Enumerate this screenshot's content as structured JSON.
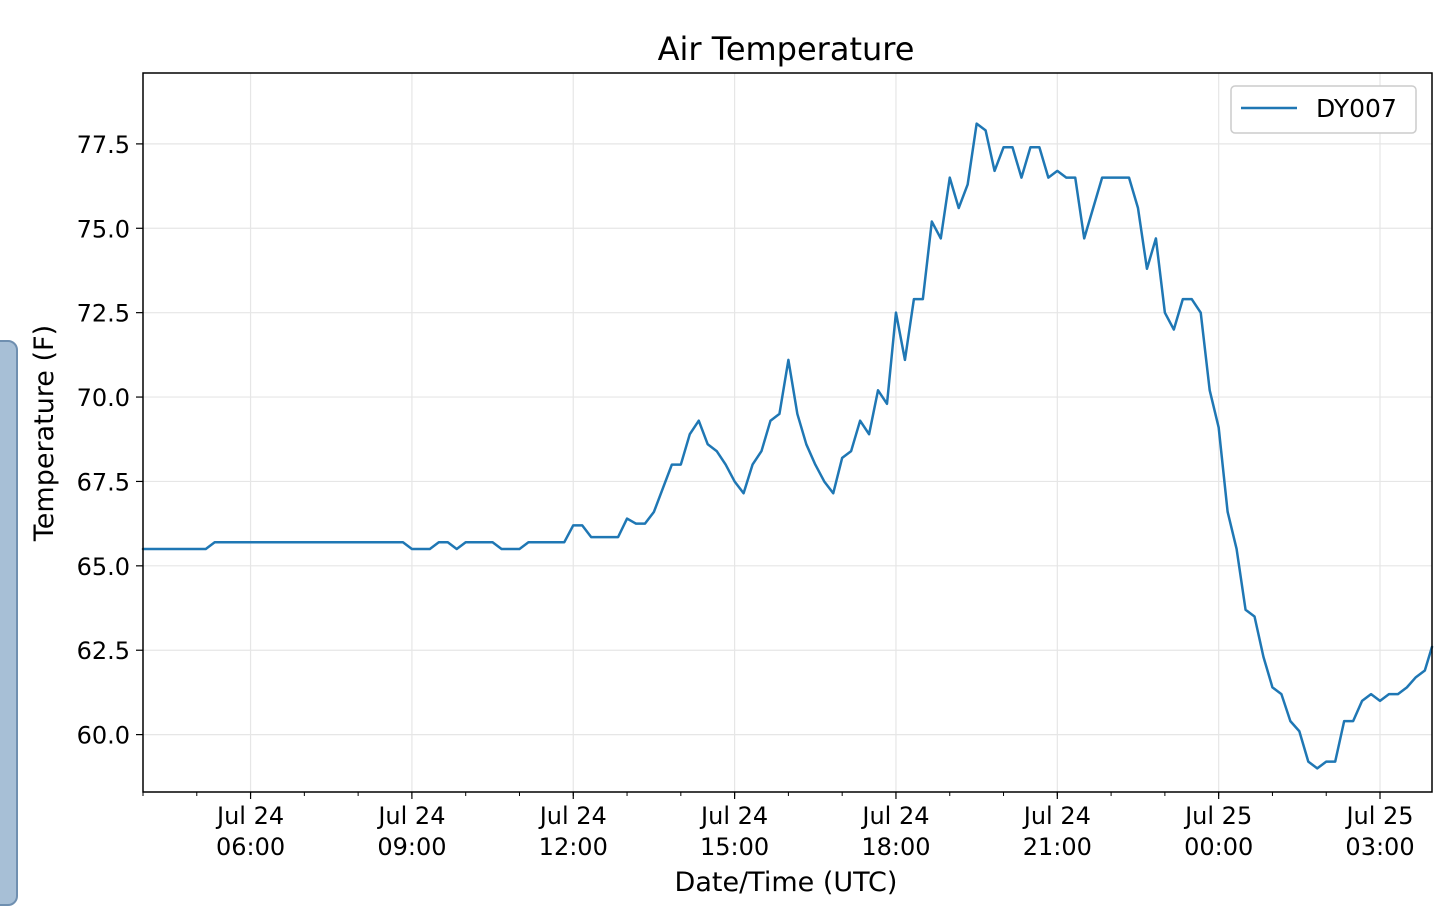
{
  "chart_data": {
    "type": "line",
    "title": "Air Temperature",
    "xlabel": "Date/Time (UTC)",
    "ylabel": "Temperature (F)",
    "ylim": [
      58.3,
      79.6
    ],
    "xlim": [
      "2023-07-24 04:00",
      "2023-07-25 03:58"
    ],
    "grid": true,
    "legend_position": "top-right",
    "line_color": "#1f77b4",
    "y_ticks": [
      {
        "value": 60.0,
        "label": "60.0"
      },
      {
        "value": 62.5,
        "label": "62.5"
      },
      {
        "value": 65.0,
        "label": "65.0"
      },
      {
        "value": 67.5,
        "label": "67.5"
      },
      {
        "value": 70.0,
        "label": "70.0"
      },
      {
        "value": 72.5,
        "label": "72.5"
      },
      {
        "value": 75.0,
        "label": "75.0"
      },
      {
        "value": 77.5,
        "label": "77.5"
      }
    ],
    "x_ticks": [
      {
        "value": "2023-07-24 06:00",
        "line1": "Jul 24",
        "line2": "06:00"
      },
      {
        "value": "2023-07-24 09:00",
        "line1": "Jul 24",
        "line2": "09:00"
      },
      {
        "value": "2023-07-24 12:00",
        "line1": "Jul 24",
        "line2": "12:00"
      },
      {
        "value": "2023-07-24 15:00",
        "line1": "Jul 24",
        "line2": "15:00"
      },
      {
        "value": "2023-07-24 18:00",
        "line1": "Jul 24",
        "line2": "18:00"
      },
      {
        "value": "2023-07-24 21:00",
        "line1": "Jul 24",
        "line2": "21:00"
      },
      {
        "value": "2023-07-25 00:00",
        "line1": "Jul 25",
        "line2": "00:00"
      },
      {
        "value": "2023-07-25 03:00",
        "line1": "Jul 25",
        "line2": "03:00"
      }
    ],
    "series": [
      {
        "name": "DY007",
        "points": [
          [
            "2023-07-24 04:00",
            65.5
          ],
          [
            "2023-07-24 05:10",
            65.5
          ],
          [
            "2023-07-24 05:20",
            65.7
          ],
          [
            "2023-07-24 08:50",
            65.7
          ],
          [
            "2023-07-24 09:00",
            65.5
          ],
          [
            "2023-07-24 09:20",
            65.5
          ],
          [
            "2023-07-24 09:30",
            65.7
          ],
          [
            "2023-07-24 09:40",
            65.7
          ],
          [
            "2023-07-24 09:50",
            65.5
          ],
          [
            "2023-07-24 10:00",
            65.7
          ],
          [
            "2023-07-24 10:30",
            65.7
          ],
          [
            "2023-07-24 10:40",
            65.5
          ],
          [
            "2023-07-24 11:00",
            65.5
          ],
          [
            "2023-07-24 11:10",
            65.7
          ],
          [
            "2023-07-24 11:50",
            65.7
          ],
          [
            "2023-07-24 12:00",
            66.2
          ],
          [
            "2023-07-24 12:10",
            66.2
          ],
          [
            "2023-07-24 12:20",
            65.85
          ],
          [
            "2023-07-24 12:50",
            65.85
          ],
          [
            "2023-07-24 13:00",
            66.4
          ],
          [
            "2023-07-24 13:10",
            66.25
          ],
          [
            "2023-07-24 13:20",
            66.25
          ],
          [
            "2023-07-24 13:30",
            66.6
          ],
          [
            "2023-07-24 13:40",
            67.3
          ],
          [
            "2023-07-24 13:50",
            68.0
          ],
          [
            "2023-07-24 14:00",
            68.0
          ],
          [
            "2023-07-24 14:10",
            68.9
          ],
          [
            "2023-07-24 14:20",
            69.3
          ],
          [
            "2023-07-24 14:30",
            68.6
          ],
          [
            "2023-07-24 14:40",
            68.4
          ],
          [
            "2023-07-24 14:50",
            68.0
          ],
          [
            "2023-07-24 15:00",
            67.5
          ],
          [
            "2023-07-24 15:10",
            67.15
          ],
          [
            "2023-07-24 15:20",
            68.0
          ],
          [
            "2023-07-24 15:30",
            68.4
          ],
          [
            "2023-07-24 15:40",
            69.3
          ],
          [
            "2023-07-24 15:50",
            69.5
          ],
          [
            "2023-07-24 16:00",
            71.1
          ],
          [
            "2023-07-24 16:10",
            69.5
          ],
          [
            "2023-07-24 16:20",
            68.6
          ],
          [
            "2023-07-24 16:30",
            68.0
          ],
          [
            "2023-07-24 16:40",
            67.5
          ],
          [
            "2023-07-24 16:50",
            67.15
          ],
          [
            "2023-07-24 17:00",
            68.2
          ],
          [
            "2023-07-24 17:10",
            68.4
          ],
          [
            "2023-07-24 17:20",
            69.3
          ],
          [
            "2023-07-24 17:30",
            68.9
          ],
          [
            "2023-07-24 17:40",
            70.2
          ],
          [
            "2023-07-24 17:50",
            69.8
          ],
          [
            "2023-07-24 18:00",
            72.5
          ],
          [
            "2023-07-24 18:10",
            71.1
          ],
          [
            "2023-07-24 18:20",
            72.9
          ],
          [
            "2023-07-24 18:30",
            72.9
          ],
          [
            "2023-07-24 18:40",
            75.2
          ],
          [
            "2023-07-24 18:50",
            74.7
          ],
          [
            "2023-07-24 19:00",
            76.5
          ],
          [
            "2023-07-24 19:10",
            75.6
          ],
          [
            "2023-07-24 19:20",
            76.3
          ],
          [
            "2023-07-24 19:30",
            78.1
          ],
          [
            "2023-07-24 19:40",
            77.9
          ],
          [
            "2023-07-24 19:50",
            76.7
          ],
          [
            "2023-07-24 20:00",
            77.4
          ],
          [
            "2023-07-24 20:10",
            77.4
          ],
          [
            "2023-07-24 20:20",
            76.5
          ],
          [
            "2023-07-24 20:30",
            77.4
          ],
          [
            "2023-07-24 20:40",
            77.4
          ],
          [
            "2023-07-24 20:50",
            76.5
          ],
          [
            "2023-07-24 21:00",
            76.7
          ],
          [
            "2023-07-24 21:10",
            76.5
          ],
          [
            "2023-07-24 21:20",
            76.5
          ],
          [
            "2023-07-24 21:30",
            74.7
          ],
          [
            "2023-07-24 21:40",
            75.6
          ],
          [
            "2023-07-24 21:50",
            76.5
          ],
          [
            "2023-07-24 22:20",
            76.5
          ],
          [
            "2023-07-24 22:30",
            75.6
          ],
          [
            "2023-07-24 22:40",
            73.8
          ],
          [
            "2023-07-24 22:50",
            74.7
          ],
          [
            "2023-07-24 23:00",
            72.5
          ],
          [
            "2023-07-24 23:10",
            72.0
          ],
          [
            "2023-07-24 23:20",
            72.9
          ],
          [
            "2023-07-24 23:30",
            72.9
          ],
          [
            "2023-07-24 23:40",
            72.5
          ],
          [
            "2023-07-24 23:50",
            70.2
          ],
          [
            "2023-07-25 00:00",
            69.1
          ],
          [
            "2023-07-25 00:10",
            66.6
          ],
          [
            "2023-07-25 00:20",
            65.5
          ],
          [
            "2023-07-25 00:30",
            63.7
          ],
          [
            "2023-07-25 00:40",
            63.5
          ],
          [
            "2023-07-25 00:50",
            62.3
          ],
          [
            "2023-07-25 01:00",
            61.4
          ],
          [
            "2023-07-25 01:10",
            61.2
          ],
          [
            "2023-07-25 01:20",
            60.4
          ],
          [
            "2023-07-25 01:30",
            60.1
          ],
          [
            "2023-07-25 01:40",
            59.2
          ],
          [
            "2023-07-25 01:50",
            59.0
          ],
          [
            "2023-07-25 02:00",
            59.2
          ],
          [
            "2023-07-25 02:10",
            59.2
          ],
          [
            "2023-07-25 02:20",
            60.4
          ],
          [
            "2023-07-25 02:30",
            60.4
          ],
          [
            "2023-07-25 02:40",
            61.0
          ],
          [
            "2023-07-25 02:50",
            61.2
          ],
          [
            "2023-07-25 03:00",
            61.0
          ],
          [
            "2023-07-25 03:10",
            61.2
          ],
          [
            "2023-07-25 03:20",
            61.2
          ],
          [
            "2023-07-25 03:30",
            61.4
          ],
          [
            "2023-07-25 03:40",
            61.7
          ],
          [
            "2023-07-25 03:50",
            61.9
          ],
          [
            "2023-07-25 03:58",
            62.6
          ]
        ]
      }
    ]
  }
}
